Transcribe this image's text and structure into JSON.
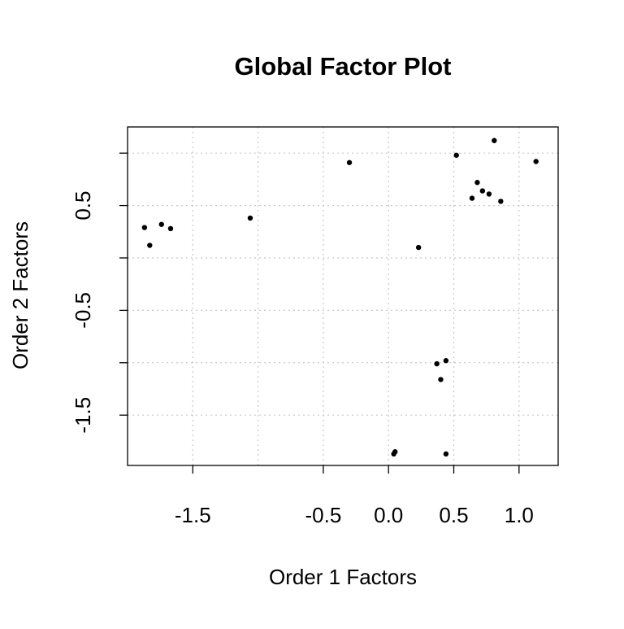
{
  "chart_data": {
    "type": "scatter",
    "title": "Global Factor Plot",
    "xlabel": "Order  1  Factors",
    "ylabel": "Order  2  Factors",
    "xlim": [
      -2.0,
      1.3
    ],
    "ylim": [
      -1.98,
      1.25
    ],
    "x_ticks": [
      -1.5,
      -0.5,
      0.0,
      0.5,
      1.0
    ],
    "x_tick_labels": [
      "-1.5",
      "-0.5",
      "0.0",
      "0.5",
      "1.0"
    ],
    "x_grid": [
      -1.5,
      -1.0,
      -0.5,
      0.0,
      0.5,
      1.0
    ],
    "y_ticks": [
      1.0,
      0.5,
      0.0,
      -0.5,
      -1.0,
      -1.5
    ],
    "y_tick_labels": [
      "",
      "0.5",
      "",
      "-0.5",
      "",
      "-1.5"
    ],
    "y_grid": [
      1.0,
      0.5,
      0.0,
      -0.5,
      -1.0,
      -1.5
    ],
    "grid": true,
    "grid_style": "dotted",
    "point_color": "#000000",
    "points": [
      {
        "x": -1.87,
        "y": 0.29
      },
      {
        "x": -1.83,
        "y": 0.12
      },
      {
        "x": -1.74,
        "y": 0.32
      },
      {
        "x": -1.67,
        "y": 0.28
      },
      {
        "x": -1.06,
        "y": 0.38
      },
      {
        "x": -0.3,
        "y": 0.91
      },
      {
        "x": 0.23,
        "y": 0.1
      },
      {
        "x": 0.52,
        "y": 0.98
      },
      {
        "x": 0.64,
        "y": 0.57
      },
      {
        "x": 0.68,
        "y": 0.72
      },
      {
        "x": 0.72,
        "y": 0.64
      },
      {
        "x": 0.77,
        "y": 0.61
      },
      {
        "x": 0.81,
        "y": 1.12
      },
      {
        "x": 0.86,
        "y": 0.54
      },
      {
        "x": 1.13,
        "y": 0.92
      },
      {
        "x": 0.37,
        "y": -1.01
      },
      {
        "x": 0.44,
        "y": -0.98
      },
      {
        "x": 0.4,
        "y": -1.16
      },
      {
        "x": 0.04,
        "y": -1.87
      },
      {
        "x": 0.05,
        "y": -1.85
      },
      {
        "x": 0.44,
        "y": -1.87
      }
    ]
  }
}
